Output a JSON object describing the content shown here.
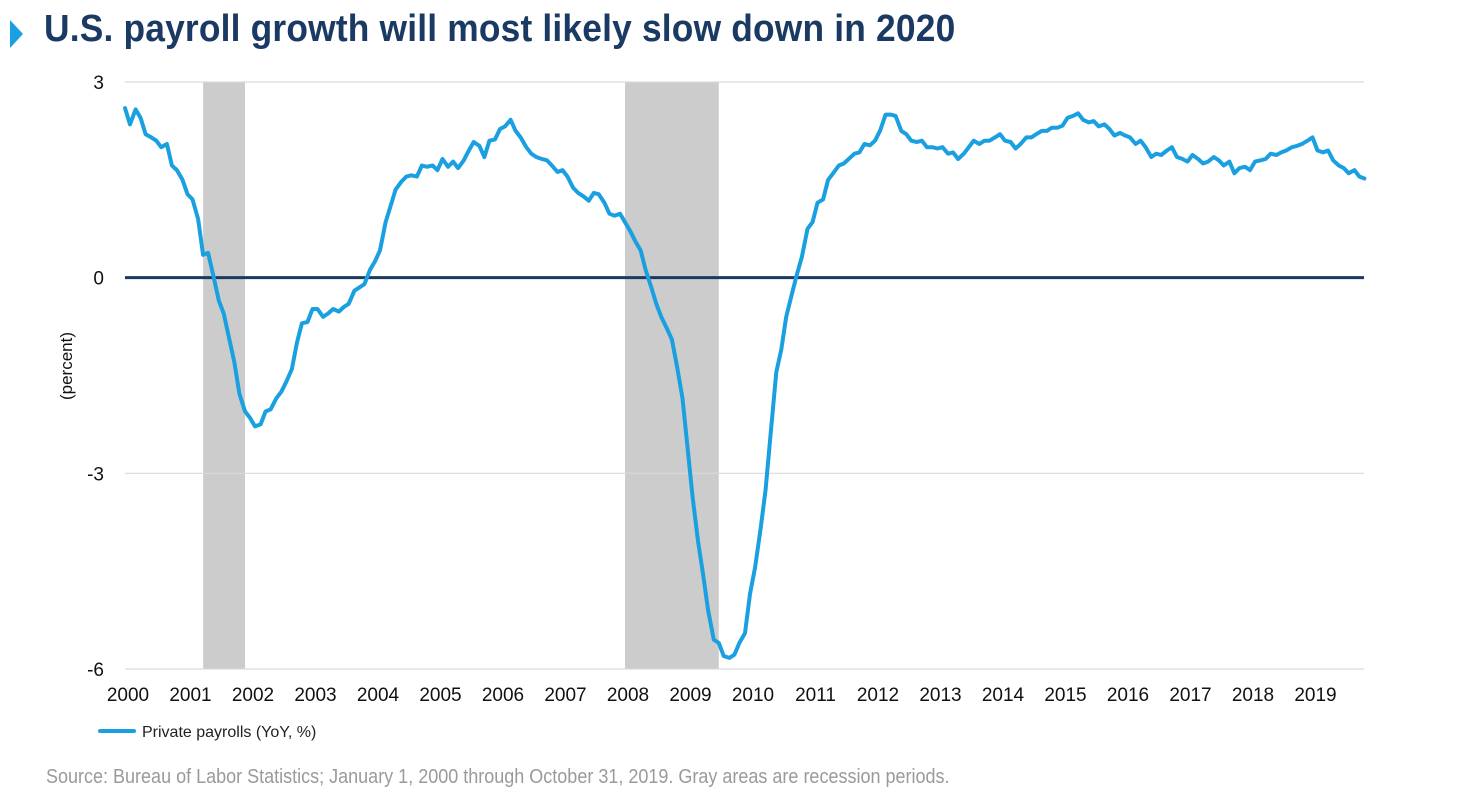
{
  "title": "U.S. payroll growth will most likely slow down in 2020",
  "source_note": "Source: Bureau of Labor Statistics; January 1, 2000 through October 31, 2019. Gray areas are recession periods.",
  "colors": {
    "title": "#1b3a63",
    "title_marker": "#1aa0e0",
    "series": "#1aa0e0",
    "zero_line": "#1b3a63",
    "recession": "#cccccc",
    "grid": "#d9d9d9",
    "source": "#9a9a9a"
  },
  "chart_data": {
    "type": "line",
    "title": "U.S. payroll growth will most likely slow down in 2020",
    "xlabel": "",
    "ylabel": "(percent)",
    "ylim": [
      -6,
      3
    ],
    "xlim": [
      2000,
      2019.83
    ],
    "yticks": [
      3,
      0,
      -3,
      -6
    ],
    "ytick_labels": [
      "3",
      "0",
      "-3",
      "-6"
    ],
    "xticks": [
      2000,
      2001,
      2002,
      2003,
      2004,
      2005,
      2006,
      2007,
      2008,
      2009,
      2010,
      2011,
      2012,
      2013,
      2014,
      2015,
      2016,
      2017,
      2018,
      2019
    ],
    "xtick_labels": [
      "2000",
      "2001",
      "2002",
      "2003",
      "2004",
      "2005",
      "2006",
      "2007",
      "2008",
      "2009",
      "2010",
      "2011",
      "2012",
      "2013",
      "2014",
      "2015",
      "2016",
      "2017",
      "2018",
      "2019"
    ],
    "grid": "horizontal",
    "legend_position": "bottom-left",
    "recessions": [
      [
        2001.25,
        2001.92
      ],
      [
        2008.0,
        2009.5
      ]
    ],
    "series": [
      {
        "name": "Private payrolls (YoY, %)",
        "x": [
          2000.0,
          2000.08,
          2000.17,
          2000.25,
          2000.33,
          2000.42,
          2000.5,
          2000.58,
          2000.67,
          2000.75,
          2000.83,
          2000.92,
          2001.0,
          2001.08,
          2001.17,
          2001.25,
          2001.33,
          2001.42,
          2001.5,
          2001.58,
          2001.67,
          2001.75,
          2001.83,
          2001.92,
          2002.0,
          2002.08,
          2002.17,
          2002.25,
          2002.33,
          2002.42,
          2002.5,
          2002.58,
          2002.67,
          2002.75,
          2002.83,
          2002.92,
          2003.0,
          2003.08,
          2003.17,
          2003.25,
          2003.33,
          2003.42,
          2003.5,
          2003.58,
          2003.67,
          2003.75,
          2003.83,
          2003.92,
          2004.0,
          2004.08,
          2004.17,
          2004.25,
          2004.33,
          2004.42,
          2004.5,
          2004.58,
          2004.67,
          2004.75,
          2004.83,
          2004.92,
          2005.0,
          2005.08,
          2005.17,
          2005.25,
          2005.33,
          2005.42,
          2005.5,
          2005.58,
          2005.67,
          2005.75,
          2005.83,
          2005.92,
          2006.0,
          2006.08,
          2006.17,
          2006.25,
          2006.33,
          2006.42,
          2006.5,
          2006.58,
          2006.67,
          2006.75,
          2006.83,
          2006.92,
          2007.0,
          2007.08,
          2007.17,
          2007.25,
          2007.33,
          2007.42,
          2007.5,
          2007.58,
          2007.67,
          2007.75,
          2007.83,
          2007.92,
          2008.0,
          2008.08,
          2008.17,
          2008.25,
          2008.33,
          2008.42,
          2008.5,
          2008.58,
          2008.67,
          2008.75,
          2008.83,
          2008.92,
          2009.0,
          2009.08,
          2009.17,
          2009.25,
          2009.33,
          2009.42,
          2009.5,
          2009.58,
          2009.67,
          2009.75,
          2009.83,
          2009.92,
          2010.0,
          2010.08,
          2010.17,
          2010.25,
          2010.33,
          2010.42,
          2010.5,
          2010.58,
          2010.67,
          2010.75,
          2010.83,
          2010.92,
          2011.0,
          2011.08,
          2011.17,
          2011.25,
          2011.33,
          2011.42,
          2011.5,
          2011.58,
          2011.67,
          2011.75,
          2011.83,
          2011.92,
          2012.0,
          2012.08,
          2012.17,
          2012.25,
          2012.33,
          2012.42,
          2012.5,
          2012.58,
          2012.67,
          2012.75,
          2012.83,
          2012.92,
          2013.0,
          2013.08,
          2013.17,
          2013.25,
          2013.33,
          2013.42,
          2013.5,
          2013.58,
          2013.67,
          2013.75,
          2013.83,
          2013.92,
          2014.0,
          2014.08,
          2014.17,
          2014.25,
          2014.33,
          2014.42,
          2014.5,
          2014.58,
          2014.67,
          2014.75,
          2014.83,
          2014.92,
          2015.0,
          2015.08,
          2015.17,
          2015.25,
          2015.33,
          2015.42,
          2015.5,
          2015.58,
          2015.67,
          2015.75,
          2015.83,
          2015.92,
          2016.0,
          2016.08,
          2016.17,
          2016.25,
          2016.33,
          2016.42,
          2016.5,
          2016.58,
          2016.67,
          2016.75,
          2016.83,
          2016.92,
          2017.0,
          2017.08,
          2017.17,
          2017.25,
          2017.33,
          2017.42,
          2017.5,
          2017.58,
          2017.67,
          2017.75,
          2017.83,
          2017.92,
          2018.0,
          2018.08,
          2018.17,
          2018.25,
          2018.33,
          2018.42,
          2018.5,
          2018.58,
          2018.67,
          2018.75,
          2018.83,
          2018.92,
          2019.0,
          2019.08,
          2019.17,
          2019.25,
          2019.33,
          2019.42,
          2019.5,
          2019.58,
          2019.67,
          2019.75,
          2019.83
        ],
        "values": [
          2.6,
          2.35,
          2.58,
          2.45,
          2.2,
          2.15,
          2.1,
          2.0,
          2.05,
          1.72,
          1.65,
          1.5,
          1.28,
          1.2,
          0.9,
          0.35,
          0.38,
          0.0,
          -0.35,
          -0.55,
          -0.95,
          -1.3,
          -1.78,
          -2.05,
          -2.15,
          -2.28,
          -2.25,
          -2.05,
          -2.02,
          -1.85,
          -1.75,
          -1.6,
          -1.4,
          -1.0,
          -0.7,
          -0.68,
          -0.48,
          -0.48,
          -0.6,
          -0.55,
          -0.48,
          -0.52,
          -0.45,
          -0.4,
          -0.2,
          -0.15,
          -0.1,
          0.12,
          0.25,
          0.42,
          0.85,
          1.1,
          1.35,
          1.47,
          1.55,
          1.57,
          1.55,
          1.72,
          1.7,
          1.72,
          1.65,
          1.82,
          1.7,
          1.78,
          1.68,
          1.8,
          1.95,
          2.08,
          2.02,
          1.85,
          2.1,
          2.12,
          2.28,
          2.32,
          2.42,
          2.25,
          2.15,
          2.0,
          1.9,
          1.85,
          1.82,
          1.8,
          1.72,
          1.62,
          1.65,
          1.55,
          1.38,
          1.3,
          1.25,
          1.18,
          1.3,
          1.28,
          1.15,
          0.98,
          0.95,
          0.98,
          0.85,
          0.72,
          0.55,
          0.42,
          0.12,
          -0.15,
          -0.4,
          -0.6,
          -0.78,
          -0.95,
          -1.35,
          -1.85,
          -2.6,
          -3.35,
          -4.05,
          -4.55,
          -5.1,
          -5.55,
          -5.6,
          -5.8,
          -5.83,
          -5.78,
          -5.6,
          -5.45,
          -4.85,
          -4.45,
          -3.85,
          -3.25,
          -2.4,
          -1.45,
          -1.1,
          -0.6,
          -0.25,
          0.05,
          0.32,
          0.75,
          0.85,
          1.15,
          1.2,
          1.5,
          1.6,
          1.72,
          1.75,
          1.82,
          1.9,
          1.92,
          2.05,
          2.03,
          2.1,
          2.25,
          2.5,
          2.5,
          2.48,
          2.25,
          2.2,
          2.1,
          2.08,
          2.1,
          2.0,
          2.0,
          1.98,
          2.0,
          1.9,
          1.92,
          1.82,
          1.9,
          2.0,
          2.1,
          2.05,
          2.1,
          2.1,
          2.15,
          2.2,
          2.1,
          2.08,
          1.98,
          2.05,
          2.15,
          2.15,
          2.2,
          2.25,
          2.25,
          2.3,
          2.3,
          2.33,
          2.45,
          2.48,
          2.52,
          2.42,
          2.38,
          2.4,
          2.32,
          2.35,
          2.28,
          2.18,
          2.22,
          2.18,
          2.15,
          2.05,
          2.1,
          2.0,
          1.85,
          1.9,
          1.88,
          1.95,
          2.0,
          1.85,
          1.82,
          1.78,
          1.88,
          1.82,
          1.75,
          1.78,
          1.85,
          1.8,
          1.72,
          1.78,
          1.6,
          1.68,
          1.7,
          1.65,
          1.78,
          1.8,
          1.82,
          1.9,
          1.88,
          1.92,
          1.95,
          2.0,
          2.02,
          2.05,
          2.1,
          2.15,
          1.95,
          1.92,
          1.95,
          1.8,
          1.72,
          1.68,
          1.6,
          1.65,
          1.55,
          1.52
        ]
      }
    ]
  }
}
